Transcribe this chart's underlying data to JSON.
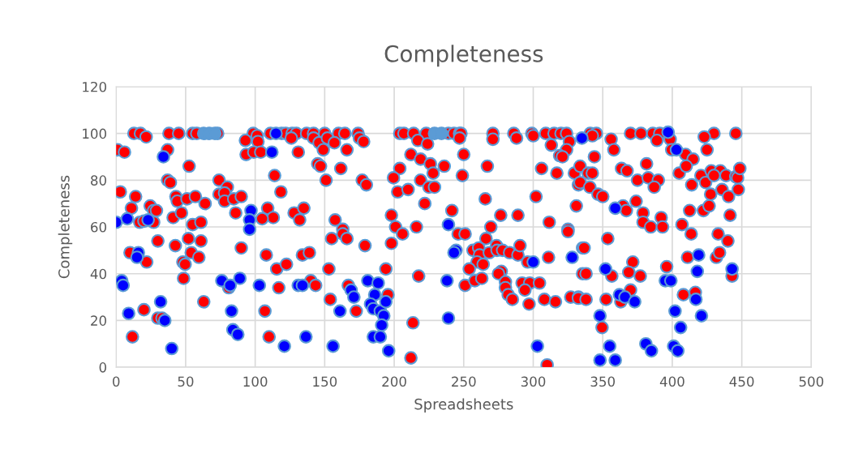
{
  "chart_data": {
    "type": "scatter",
    "title": "Completeness",
    "xlabel": "Spreadsheets",
    "ylabel": "Completeness",
    "xlim": [
      0,
      500
    ],
    "xticks": [
      0,
      50,
      100,
      150,
      200,
      250,
      300,
      350,
      400,
      450,
      500
    ],
    "ylim": [
      0,
      120
    ],
    "yticks": [
      0,
      20,
      40,
      60,
      80,
      100,
      120
    ],
    "grid": true,
    "marker": "circle",
    "series": [
      {
        "color": "#ff0000",
        "x": [
          12.8,
          17.5,
          38,
          45,
          55,
          58,
          73,
          98.6,
          101.5,
          111,
          119,
          122,
          126.6,
          129.6,
          137,
          142,
          150,
          160,
          164.5,
          21.6,
          142,
          146,
          152,
          157,
          126,
          1,
          6,
          37,
          93,
          102,
          93.5,
          99,
          104,
          131,
          149,
          166,
          52.5,
          145,
          147,
          161.6,
          114,
          151,
          37,
          39,
          74,
          80,
          74,
          78,
          78,
          84.6,
          90,
          118.5,
          3,
          14,
          11,
          24.5,
          27,
          29,
          43,
          44,
          51,
          57,
          64,
          109,
          113,
          128,
          132,
          135,
          41,
          47,
          86,
          105,
          157.5,
          163,
          17,
          20,
          27,
          55,
          61,
          30,
          42.6,
          52,
          61,
          54,
          59.5,
          10,
          22,
          48,
          49.6,
          48.5,
          20,
          30,
          33,
          11.7,
          63,
          90,
          81,
          108,
          115.5,
          122.5,
          134,
          139,
          117,
          140,
          143.5,
          107,
          110,
          153,
          154,
          155,
          163,
          166,
          174,
          204,
          207,
          214,
          223,
          239,
          243,
          247,
          248,
          271,
          286,
          299,
          309,
          315,
          320,
          324,
          175,
          178,
          217,
          224,
          247,
          271,
          288,
          300,
          313,
          326,
          324,
          319,
          321,
          212,
          219,
          226,
          228,
          250,
          236,
          204,
          199.5,
          249,
          267,
          306,
          317,
          329.6,
          177,
          180,
          219,
          225,
          229,
          202.5,
          210,
          332.5,
          265.5,
          302,
          222,
          241.5,
          198,
          276.6,
          289,
          311.5,
          331,
          201,
          216,
          269.5,
          325,
          179,
          206,
          198,
          194,
          217.6,
          167,
          195.5,
          172.7,
          213.5,
          212,
          246,
          251,
          266,
          256.7,
          260.8,
          261.4,
          268.4,
          273.6,
          274,
          278,
          283,
          289,
          290.5,
          296,
          259.6,
          264,
          254,
          277,
          275,
          251,
          258,
          263,
          280,
          280,
          282,
          285,
          292,
          297.5,
          304.5,
          294,
          297,
          308,
          316,
          311,
          325,
          327,
          332.5,
          335.5,
          335.5,
          310,
          341,
          345.4,
          370,
          377.5,
          386,
          391,
          445.7,
          430,
          423,
          342.5,
          356,
          358,
          389,
          398.5,
          399.6,
          409.6,
          415,
          425,
          344,
          333.7,
          339.5,
          342.5,
          363.5,
          367.5,
          381.5,
          375,
          382.7,
          390,
          387,
          405,
          410,
          420.6,
          424,
          414,
          428,
          434.6,
          438.7,
          430,
          445.7,
          447,
          448.6,
          427.6,
          435.8,
          440.5,
          447.5,
          333.7,
          340.7,
          346.6,
          350,
          364.6,
          367,
          374,
          379,
          379,
          384.5,
          392,
          393,
          412.5,
          422.4,
          426.5,
          441.6,
          407,
          353.6,
          336.6,
          338,
          332.5,
          338,
          352.4,
          356.5,
          349.5,
          371.6,
          368.7,
          377,
          370,
          363,
          396,
          408,
          416.6,
          411,
          431.7,
          434,
          443,
          413.6,
          433,
          440
        ],
        "values": [
          100,
          100,
          100,
          100,
          100,
          100,
          100,
          100,
          99,
          100,
          100,
          100,
          100,
          100,
          100,
          100,
          100,
          100,
          100,
          98.5,
          98,
          96,
          98,
          96,
          98,
          93,
          92,
          93,
          97,
          96.5,
          91,
          92,
          92,
          92,
          93,
          93,
          86,
          87,
          86,
          85,
          82,
          80,
          80,
          79,
          80,
          77,
          74,
          74.5,
          71,
          72,
          73,
          75,
          75,
          73,
          68,
          69,
          67,
          67,
          73,
          71,
          72,
          73,
          70,
          68,
          64,
          66,
          63,
          68,
          64,
          66,
          66,
          63.5,
          63,
          59,
          62,
          62.5,
          62,
          61,
          62,
          54,
          52,
          55,
          54,
          49,
          47,
          49,
          45,
          45,
          44,
          38,
          24.6,
          21,
          21,
          13,
          28,
          51,
          34,
          48,
          42,
          44,
          48,
          49,
          34,
          37,
          35,
          24,
          13,
          42,
          29,
          55,
          57,
          55,
          100,
          100,
          100,
          100,
          100,
          100,
          100,
          100,
          100,
          100,
          100,
          100,
          100,
          100,
          100,
          100,
          98,
          96.5,
          97,
          95.5,
          98,
          97.5,
          98,
          99,
          95,
          96.5,
          93,
          90.5,
          90,
          91,
          89,
          87,
          83,
          91,
          86,
          85,
          81,
          82,
          86,
          85,
          83,
          83,
          80,
          78,
          80,
          77,
          77,
          75,
          76,
          78,
          72,
          73,
          70,
          67,
          65,
          65,
          65,
          62,
          69,
          60,
          60,
          60,
          59,
          52,
          57,
          53,
          42,
          39,
          35,
          31,
          24,
          19,
          4,
          57,
          57,
          55,
          50,
          51,
          48,
          49,
          52,
          50,
          50,
          49,
          48,
          52,
          45,
          45,
          44,
          42,
          41,
          40,
          35,
          37,
          38,
          36.5,
          34,
          31,
          29,
          36,
          36,
          36,
          33,
          27,
          29,
          28,
          47,
          58,
          30,
          30,
          51,
          40,
          1,
          100,
          100,
          100,
          100,
          100,
          100,
          100,
          100,
          98.5,
          99,
          97.5,
          93,
          97,
          97.5,
          93,
          91,
          89,
          93,
          90,
          86,
          83,
          83,
          85,
          84,
          87,
          80,
          81,
          80,
          77,
          83,
          86,
          82,
          79,
          78,
          84,
          84,
          82,
          82,
          81.5,
          81,
          85,
          74,
          76,
          73,
          76,
          79,
          77,
          74,
          73,
          69,
          67,
          71,
          66,
          62,
          60,
          64,
          60,
          67,
          67,
          69,
          65,
          61,
          55,
          51,
          40,
          29.5,
          29,
          29,
          39,
          17,
          45,
          40.6,
          39,
          33,
          28,
          43,
          31,
          32,
          47,
          47,
          49,
          39,
          57,
          57,
          54
        ]
      },
      {
        "color": "#0000ff",
        "x": [
          0,
          8,
          23,
          97,
          96,
          96,
          112,
          34,
          16,
          15,
          4,
          5,
          32,
          9,
          35,
          40,
          76,
          82,
          89,
          83,
          84,
          87.5,
          103,
          131,
          134,
          121,
          136.5,
          156,
          161,
          181,
          188.5,
          169,
          171,
          186,
          183,
          185,
          190,
          194,
          192.5,
          191,
          185,
          190,
          196,
          238,
          239,
          244.5,
          243,
          239,
          300,
          303,
          328,
          352,
          362,
          366,
          373,
          348,
          355,
          348,
          359,
          395,
          399,
          402,
          406,
          381,
          385,
          401,
          404,
          419,
          418,
          417,
          421,
          443,
          115,
          335,
          397,
          403,
          359
        ],
        "values": [
          62,
          63.5,
          63,
          67,
          63,
          59,
          92,
          90,
          49,
          47,
          37,
          35,
          28,
          23,
          20,
          8,
          37,
          35,
          38,
          24,
          16,
          14,
          35,
          35,
          35,
          9,
          13,
          9,
          24,
          37,
          36,
          33,
          30,
          31,
          27,
          25,
          24,
          28,
          22,
          18,
          13,
          13,
          7,
          37,
          21,
          50,
          49,
          61,
          45,
          9,
          47,
          42,
          31,
          30,
          28,
          22,
          9,
          3,
          3,
          37,
          37,
          24,
          17,
          10,
          7,
          9,
          7,
          48,
          41,
          29,
          22,
          42,
          100,
          98,
          100.5,
          93,
          68
        ]
      },
      {
        "color": "#5b9bd5",
        "x": [
          63,
          67,
          71,
          229,
          234
        ],
        "values": [
          100,
          100,
          100,
          100,
          100
        ]
      }
    ]
  }
}
